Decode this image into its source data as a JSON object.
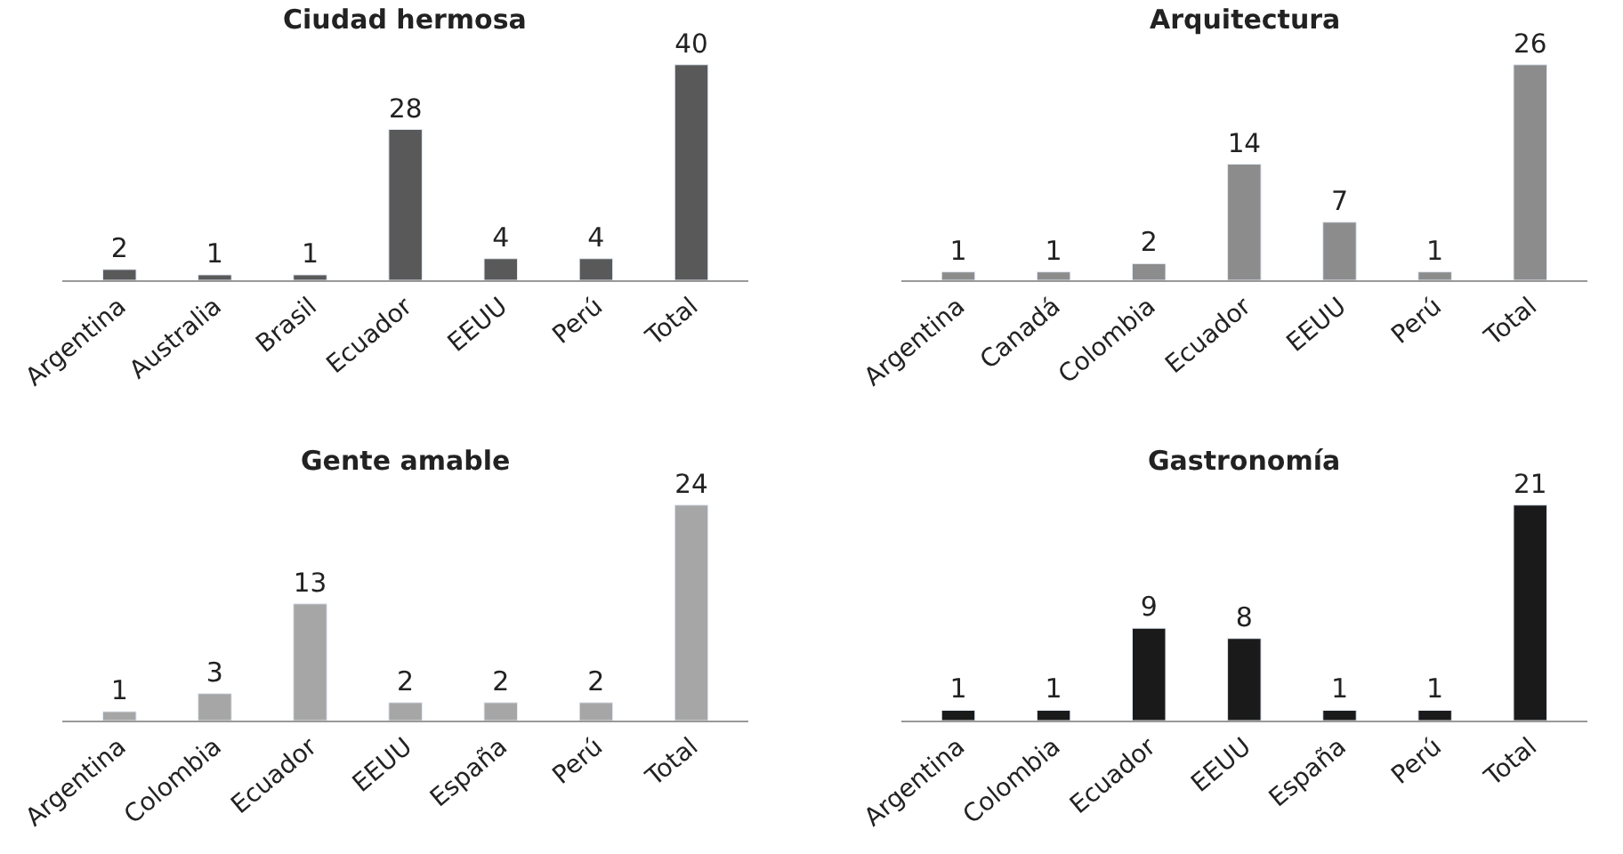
{
  "chart_data": [
    {
      "type": "bar",
      "title": "Ciudad hermosa",
      "categories": [
        "Argentina",
        "Australia",
        "Brasil",
        "Ecuador",
        "EEUU",
        "Perú",
        "Total"
      ],
      "values": [
        2,
        1,
        1,
        28,
        4,
        4,
        40
      ],
      "color": "#595959",
      "data_labels": true,
      "tick_labels": "x"
    },
    {
      "type": "bar",
      "title": "Arquitectura",
      "categories": [
        "Argentina",
        "Canadá",
        "Colombia",
        "Ecuador",
        "EEUU",
        "Perú",
        "Total"
      ],
      "values": [
        1,
        1,
        2,
        14,
        7,
        1,
        26
      ],
      "color": "#8c8c8c",
      "data_labels": true,
      "tick_labels": "x"
    },
    {
      "type": "bar",
      "title": "Gente amable",
      "categories": [
        "Argentina",
        "Colombia",
        "Ecuador",
        "EEUU",
        "España",
        "Perú",
        "Total"
      ],
      "values": [
        1,
        3,
        13,
        2,
        2,
        2,
        24
      ],
      "color": "#a6a6a6",
      "data_labels": true,
      "tick_labels": "x"
    },
    {
      "type": "bar",
      "title": "Gastronomía",
      "categories": [
        "Argentina",
        "Colombia",
        "Ecuador",
        "EEUU",
        "España",
        "Perú",
        "Total"
      ],
      "values": [
        1,
        1,
        9,
        8,
        1,
        1,
        21
      ],
      "color": "#1a1a1a",
      "data_labels": true,
      "tick_labels": "x"
    }
  ]
}
